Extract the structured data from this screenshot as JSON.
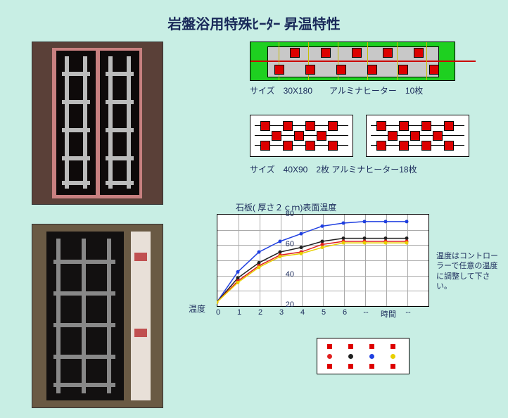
{
  "title": "岩盤浴用特殊ﾋｰﾀｰ 昇温特性",
  "diagram1_caption": "サイズ　30X180　　アルミナヒーター　10枚",
  "diagram2_caption": "サイズ　40X90　2枚  アルミナヒーター18枚",
  "chart": {
    "title": "石板( 厚さ２ｃｍ)表面温度",
    "ylabel": "温度",
    "xlabel_right": "時間",
    "ymin": 20,
    "ymax": 80,
    "yticks": [
      20,
      40,
      60,
      80
    ],
    "xticks": [
      "0",
      "1",
      "2",
      "3",
      "4",
      "5",
      "6",
      "--",
      "時間",
      "--"
    ],
    "grid_color": "#aaaaaa",
    "bg": "#ffffff",
    "series": [
      {
        "color": "#2040e0",
        "points": [
          [
            0,
            22
          ],
          [
            1,
            42
          ],
          [
            2,
            55
          ],
          [
            3,
            62
          ],
          [
            4,
            67
          ],
          [
            5,
            72
          ],
          [
            6,
            74
          ],
          [
            7,
            75
          ],
          [
            8,
            75
          ],
          [
            9,
            75
          ]
        ]
      },
      {
        "color": "#202020",
        "points": [
          [
            0,
            22
          ],
          [
            1,
            38
          ],
          [
            2,
            48
          ],
          [
            3,
            55
          ],
          [
            4,
            58
          ],
          [
            5,
            62
          ],
          [
            6,
            64
          ],
          [
            7,
            64
          ],
          [
            8,
            64
          ],
          [
            9,
            64
          ]
        ]
      },
      {
        "color": "#e02020",
        "points": [
          [
            0,
            22
          ],
          [
            1,
            36
          ],
          [
            2,
            46
          ],
          [
            3,
            53
          ],
          [
            4,
            55
          ],
          [
            5,
            60
          ],
          [
            6,
            62
          ],
          [
            7,
            62
          ],
          [
            8,
            62
          ],
          [
            9,
            62
          ]
        ]
      },
      {
        "color": "#e8d000",
        "points": [
          [
            0,
            22
          ],
          [
            1,
            35
          ],
          [
            2,
            45
          ],
          [
            3,
            52
          ],
          [
            4,
            54
          ],
          [
            5,
            58
          ],
          [
            6,
            61
          ],
          [
            7,
            61
          ],
          [
            8,
            61
          ],
          [
            9,
            61
          ]
        ]
      }
    ]
  },
  "note": "温度はコントローラーで任意の温度に調整して下さい。",
  "legend_colors": {
    "red_sq": "#d00000",
    "dots": [
      "#e02020",
      "#202020",
      "#2040e0",
      "#e8d000"
    ]
  }
}
